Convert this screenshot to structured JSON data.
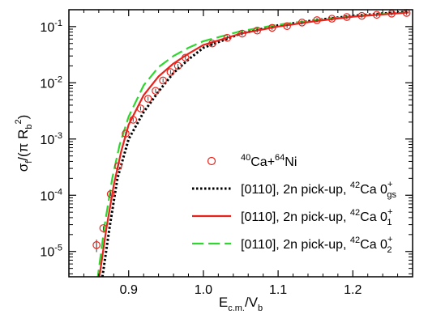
{
  "chart_data": {
    "type": "line",
    "xlabel": {
      "base": "E",
      "sub": "c.m.",
      "rest": "/V",
      "sub2": "b"
    },
    "ylabel": {
      "text": "σ",
      "sub": "f",
      "rest": "/(π R",
      "sub2": "b",
      "sup": "2",
      "end": ")"
    },
    "xlim": [
      0.82,
      1.28
    ],
    "ylim_log10": [
      -5.45,
      -0.7
    ],
    "yscale": "log",
    "x_ticks": [
      {
        "value": 0.9,
        "label": "0.9"
      },
      {
        "value": 1.0,
        "label": "1.0"
      },
      {
        "value": 1.1,
        "label": "1.1"
      },
      {
        "value": 1.2,
        "label": "1.2"
      }
    ],
    "y_ticks": [
      {
        "exp": -5,
        "base": "10",
        "sup": "-5"
      },
      {
        "exp": -4,
        "base": "10",
        "sup": "-4"
      },
      {
        "exp": -3,
        "base": "10",
        "sup": "-3"
      },
      {
        "exp": -2,
        "base": "10",
        "sup": "-2"
      },
      {
        "exp": -1,
        "base": "10",
        "sup": "-1"
      }
    ],
    "legend_placement": "bottom-right",
    "experimental": {
      "name": {
        "sup1": "40",
        "mid": "Ca+",
        "sup2": "64",
        "end": "Ni"
      },
      "color": "#e8231c",
      "points": [
        {
          "x": 0.857,
          "y": 1.3e-05,
          "err": 0.25
        },
        {
          "x": 0.866,
          "y": 2.6e-05,
          "err": 0.1
        },
        {
          "x": 0.876,
          "y": 0.000105,
          "err": 0.05
        },
        {
          "x": 0.886,
          "y": 0.00033,
          "err": 0.03
        },
        {
          "x": 0.896,
          "y": 0.00125,
          "err": 0.02
        },
        {
          "x": 0.906,
          "y": 0.0022,
          "err": 0.02
        },
        {
          "x": 0.916,
          "y": 0.0035,
          "err": 0.02
        },
        {
          "x": 0.926,
          "y": 0.0052,
          "err": 0.02
        },
        {
          "x": 0.936,
          "y": 0.0072,
          "err": 0.02
        },
        {
          "x": 0.946,
          "y": 0.011,
          "err": 0.02
        },
        {
          "x": 0.956,
          "y": 0.0155,
          "err": 0.02
        },
        {
          "x": 0.966,
          "y": 0.02,
          "err": 0.02
        },
        {
          "x": 0.976,
          "y": 0.028,
          "err": 0.02
        },
        {
          "x": 1.012,
          "y": 0.05,
          "err": 0.02
        },
        {
          "x": 1.032,
          "y": 0.063,
          "err": 0.02
        },
        {
          "x": 1.052,
          "y": 0.075,
          "err": 0.02
        },
        {
          "x": 1.072,
          "y": 0.085,
          "err": 0.02
        },
        {
          "x": 1.092,
          "y": 0.095,
          "err": 0.02
        },
        {
          "x": 1.112,
          "y": 0.102,
          "err": 0.02
        },
        {
          "x": 1.132,
          "y": 0.118,
          "err": 0.02
        },
        {
          "x": 1.152,
          "y": 0.13,
          "err": 0.02
        },
        {
          "x": 1.172,
          "y": 0.138,
          "err": 0.02
        },
        {
          "x": 1.192,
          "y": 0.148,
          "err": 0.02
        },
        {
          "x": 1.212,
          "y": 0.155,
          "err": 0.02
        },
        {
          "x": 1.232,
          "y": 0.162,
          "err": 0.02
        },
        {
          "x": 1.252,
          "y": 0.17,
          "err": 0.02
        },
        {
          "x": 1.272,
          "y": 0.175,
          "err": 0.02
        }
      ]
    },
    "series": [
      {
        "name": {
          "main": "[0110], 2n pick-up, ",
          "sup1": "42",
          "mid": "Ca 0",
          "sup2": "+",
          "sub": "gs"
        },
        "color": "#000000",
        "style": "dotted",
        "x": [
          0.864,
          0.875,
          0.885,
          0.9,
          0.92,
          0.94,
          0.96,
          0.98,
          1.0,
          1.05,
          1.1,
          1.15,
          1.2,
          1.25,
          1.275
        ],
        "y": [
          3e-06,
          3e-05,
          0.0002,
          0.001,
          0.003,
          0.007,
          0.015,
          0.026,
          0.042,
          0.075,
          0.105,
          0.13,
          0.155,
          0.175,
          0.185
        ]
      },
      {
        "name": {
          "main": "[0110], 2n pick-up, ",
          "sup1": "42",
          "mid": "Ca 0",
          "sup2": "+",
          "sub": "1"
        },
        "color": "#e8231c",
        "style": "solid",
        "x": [
          0.86,
          0.87,
          0.88,
          0.89,
          0.9,
          0.92,
          0.94,
          0.96,
          0.98,
          1.0,
          1.05,
          1.1,
          1.15,
          1.2,
          1.25,
          1.275
        ],
        "y": [
          3e-06,
          2.5e-05,
          0.00015,
          0.0006,
          0.0018,
          0.006,
          0.013,
          0.022,
          0.033,
          0.047,
          0.075,
          0.1,
          0.125,
          0.15,
          0.168,
          0.178
        ]
      },
      {
        "name": {
          "main": "[0110], 2n pick-up, ",
          "sup1": "42",
          "mid": "Ca 0",
          "sup2": "+",
          "sub": "2"
        },
        "color": "#2fd62f",
        "style": "dashed",
        "x": [
          0.858,
          0.868,
          0.878,
          0.888,
          0.9,
          0.92,
          0.94,
          0.96,
          0.98,
          1.0,
          1.05,
          1.1,
          1.15,
          1.2,
          1.25,
          1.275
        ],
        "y": [
          3e-06,
          3e-05,
          0.0002,
          0.0008,
          0.0025,
          0.009,
          0.019,
          0.03,
          0.042,
          0.055,
          0.083,
          0.108,
          0.13,
          0.152,
          0.17,
          0.178
        ]
      }
    ]
  }
}
